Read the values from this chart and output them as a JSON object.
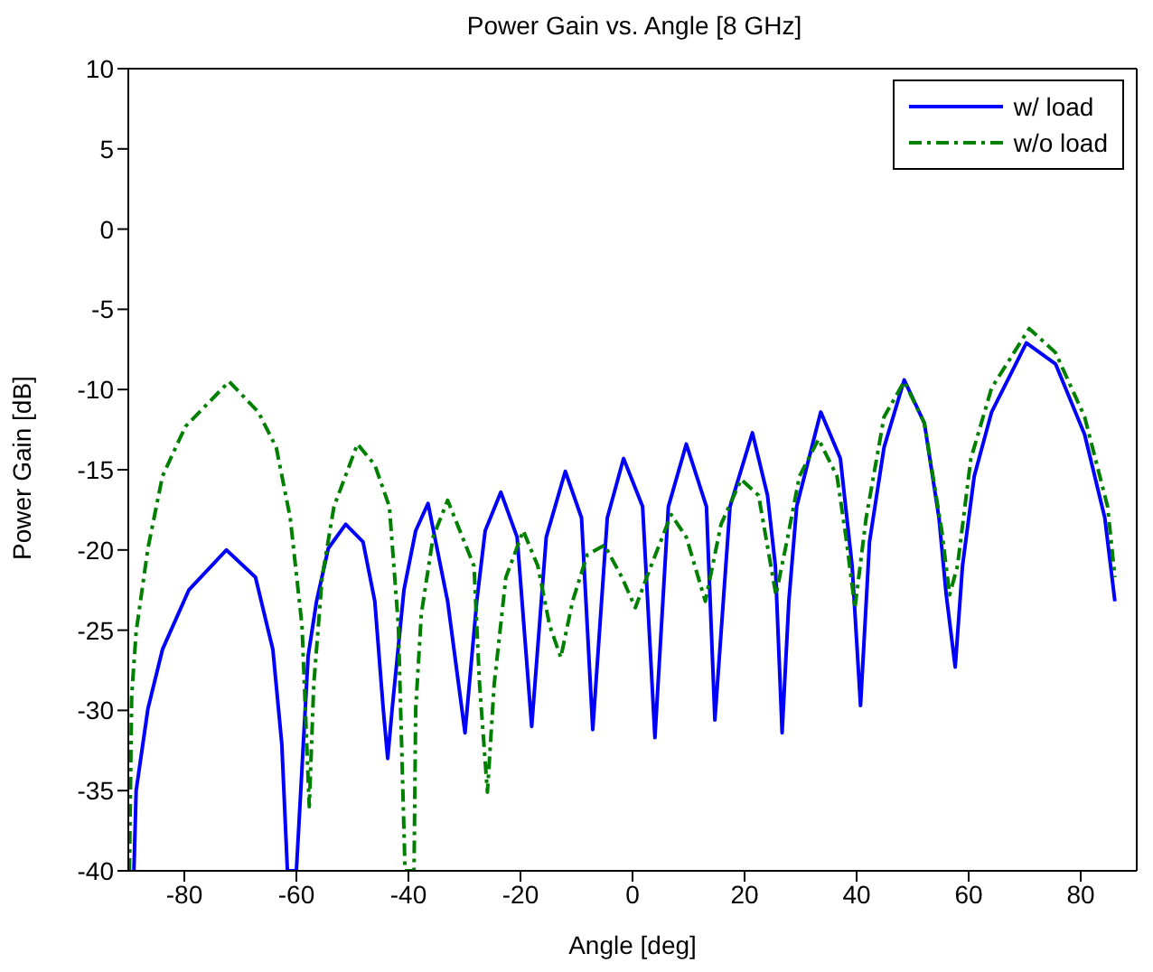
{
  "chart_data": {
    "type": "line",
    "title": "Power Gain vs. Angle [8 GHz]",
    "xlabel": "Angle [deg]",
    "ylabel": "Power Gain [dB]",
    "xlim": [
      -90,
      90
    ],
    "xticks": [
      -80,
      -60,
      -40,
      -20,
      0,
      20,
      40,
      60,
      80
    ],
    "ylim": [
      -40,
      10
    ],
    "yticks": [
      -40,
      -35,
      -30,
      -25,
      -20,
      -15,
      -10,
      -5,
      0,
      5,
      10
    ],
    "legend": "top right",
    "marker": "none",
    "series": [
      {
        "name": "w/ load",
        "color": "#0000ff",
        "line_style": "solid",
        "x": [
          -89,
          -88.6,
          -86.5,
          -83.9,
          -79.2,
          -72.5,
          -67.3,
          -64.2,
          -62.6,
          -61.6,
          -60,
          -57.9,
          -56.4,
          -54.3,
          -51.2,
          -48.1,
          -46,
          -44.5,
          -43.7,
          -42.9,
          -40.8,
          -38.7,
          -36.5,
          -33,
          -29.9,
          -27.8,
          -26.3,
          -23.5,
          -20.6,
          -18,
          -15.4,
          -12,
          -9.1,
          -7.1,
          -4.5,
          -1.6,
          1.8,
          4,
          6.4,
          9.6,
          13.2,
          14.7,
          17.4,
          21.4,
          24.1,
          25.5,
          26.7,
          27.9,
          29.3,
          33.6,
          37.1,
          39.2,
          40.7,
          42.3,
          44.9,
          48.5,
          52.1,
          54.7,
          56,
          57.6,
          58.9,
          61,
          64.1,
          70.3,
          75.5,
          80.7,
          84.3,
          86.1
        ],
        "values": [
          -40,
          -35,
          -29.9,
          -26.2,
          -22.5,
          -20,
          -21.7,
          -26.2,
          -32.1,
          -40,
          -40,
          -26.6,
          -23.2,
          -19.9,
          -18.4,
          -19.5,
          -23.2,
          -29.9,
          -33,
          -29.9,
          -22.5,
          -18.8,
          -17.1,
          -23.2,
          -31.4,
          -23.2,
          -18.8,
          -16.4,
          -19.2,
          -31,
          -19.2,
          -15.1,
          -18,
          -31.2,
          -18,
          -14.3,
          -17.3,
          -31.7,
          -17.3,
          -13.4,
          -17.3,
          -30.6,
          -17.3,
          -12.7,
          -16.6,
          -21,
          -31.4,
          -23.2,
          -17.3,
          -11.4,
          -14.3,
          -21,
          -29.7,
          -19.5,
          -13.6,
          -9.4,
          -12.1,
          -18,
          -22.8,
          -27.3,
          -21,
          -15.4,
          -11.4,
          -7.1,
          -8.4,
          -12.8,
          -18,
          -23.2
        ]
      },
      {
        "name": "w/o load",
        "color": "#008000",
        "line_style": "dashdot",
        "x": [
          -89.8,
          -89.4,
          -88.6,
          -86.5,
          -83.9,
          -79.8,
          -72,
          -66.8,
          -63.6,
          -61.1,
          -59,
          -57.7,
          -56.9,
          -55.4,
          -53.3,
          -49.1,
          -46,
          -43.4,
          -41.8,
          -40.6,
          -39,
          -38.7,
          -37.7,
          -35.6,
          -33,
          -28.3,
          -27.3,
          -25.9,
          -24.7,
          -22.6,
          -19.5,
          -16.9,
          -14.8,
          -12.8,
          -10.7,
          -8.1,
          -5,
          -1.9,
          0.5,
          3.3,
          6.9,
          9.6,
          13,
          15.8,
          19.4,
          22.5,
          25.6,
          27.7,
          29.8,
          33.2,
          36.5,
          38.1,
          39.7,
          41.7,
          44.9,
          48.5,
          52.1,
          55.2,
          56.6,
          58,
          60.4,
          64.1,
          70.8,
          75.5,
          80.7,
          84.8,
          86.1
        ],
        "values": [
          -40,
          -29.1,
          -25.1,
          -19.9,
          -15.4,
          -12.3,
          -9.5,
          -11.4,
          -13.6,
          -18,
          -24.7,
          -36,
          -28.4,
          -21.7,
          -17.3,
          -13.4,
          -14.7,
          -17.3,
          -24.7,
          -40,
          -40,
          -29.9,
          -24,
          -19.2,
          -16.9,
          -21,
          -28.4,
          -35.1,
          -28.4,
          -21.7,
          -18.8,
          -21,
          -24.7,
          -26.7,
          -23.2,
          -20.3,
          -19.7,
          -21.7,
          -23.6,
          -21,
          -17.8,
          -19.2,
          -23.2,
          -18.4,
          -15.6,
          -16.6,
          -22.8,
          -19.2,
          -15.4,
          -13.1,
          -15.4,
          -19.2,
          -23.6,
          -18,
          -11.7,
          -9.5,
          -12.1,
          -18.8,
          -22.8,
          -21,
          -14.3,
          -9.9,
          -6.2,
          -7.7,
          -11.7,
          -17.3,
          -21.7
        ]
      }
    ]
  }
}
